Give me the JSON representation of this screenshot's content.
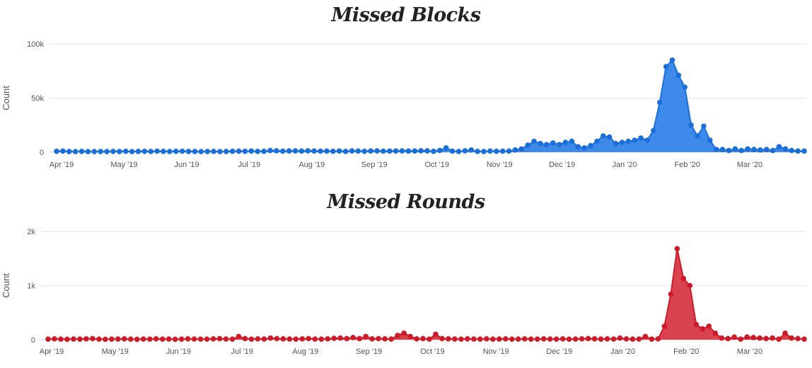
{
  "chart_data": [
    {
      "type": "area",
      "title": "Missed Blocks",
      "ylabel": "Count",
      "ylim": [
        0,
        100000
      ],
      "yticks": [
        {
          "value": 0,
          "label": "0"
        },
        {
          "value": 50000,
          "label": "50k"
        },
        {
          "value": 100000,
          "label": "100k"
        }
      ],
      "xticks": [
        "Apr '19",
        "May '19",
        "Jun '19",
        "Jul '19",
        "Aug '19",
        "Sep '19",
        "Oct '19",
        "Nov '19",
        "Dec '19",
        "Jan '20",
        "Feb '20",
        "Mar '20"
      ],
      "grid": true,
      "series": [
        {
          "color": "#1a6fd9",
          "fill": "#3d8ae8",
          "values": [
            800,
            1000,
            600,
            500,
            700,
            500,
            500,
            600,
            500,
            700,
            600,
            800,
            500,
            700,
            800,
            600,
            900,
            700,
            600,
            800,
            900,
            700,
            600,
            500,
            600,
            700,
            500,
            600,
            800,
            900,
            800,
            1000,
            700,
            800,
            1500,
            1300,
            900,
            1100,
            1200,
            1000,
            1300,
            1100,
            900,
            1000,
            800,
            1100,
            700,
            1200,
            1000,
            800,
            1100,
            1200,
            900,
            1000,
            1100,
            1200,
            1000,
            1100,
            1300,
            1200,
            800,
            1600,
            4000,
            900,
            600,
            1300,
            2000,
            700,
            600,
            1000,
            800,
            900,
            1000,
            2000,
            3000,
            6500,
            10000,
            8000,
            7000,
            8500,
            7000,
            9000,
            10000,
            5000,
            4000,
            6000,
            10000,
            15000,
            14000,
            8000,
            9000,
            10000,
            11000,
            13000,
            11000,
            20000,
            46000,
            79000,
            85000,
            71000,
            60000,
            25000,
            15000,
            24000,
            11000,
            2500,
            2500,
            1500,
            3000,
            1500,
            3000,
            2500,
            2000,
            2500,
            1500,
            5000,
            3000,
            1500,
            1000,
            1000
          ]
        }
      ]
    },
    {
      "type": "area",
      "title": "Missed Rounds",
      "ylabel": "Count",
      "ylim": [
        0,
        2000
      ],
      "yticks": [
        {
          "value": 0,
          "label": "0"
        },
        {
          "value": 1000,
          "label": "1k"
        },
        {
          "value": 2000,
          "label": "2k"
        }
      ],
      "xticks": [
        "Apr '19",
        "May '19",
        "Jun '19",
        "Jul '19",
        "Aug '19",
        "Sep '19",
        "Oct '19",
        "Nov '19",
        "Dec '19",
        "Jan '20",
        "Feb '20",
        "Mar '20"
      ],
      "grid": true,
      "series": [
        {
          "color": "#cc1c2a",
          "fill": "#d9424f",
          "values": [
            10,
            15,
            10,
            8,
            12,
            10,
            15,
            20,
            10,
            8,
            10,
            12,
            15,
            10,
            8,
            12,
            10,
            15,
            10,
            12,
            8,
            10,
            15,
            12,
            10,
            10,
            15,
            20,
            12,
            10,
            60,
            20,
            10,
            15,
            12,
            30,
            20,
            15,
            12,
            10,
            15,
            20,
            12,
            10,
            15,
            25,
            30,
            20,
            40,
            20,
            60,
            15,
            20,
            15,
            12,
            80,
            120,
            60,
            15,
            20,
            10,
            100,
            20,
            15,
            12,
            10,
            15,
            12,
            10,
            15,
            10,
            12,
            15,
            10,
            12,
            15,
            10,
            10,
            15,
            12,
            10,
            15,
            10,
            12,
            15,
            20,
            15,
            10,
            15,
            12,
            30,
            15,
            10,
            12,
            60,
            10,
            15,
            250,
            840,
            1680,
            1130,
            1000,
            280,
            200,
            250,
            120,
            30,
            20,
            50,
            10,
            50,
            40,
            30,
            20,
            30,
            10,
            120,
            30,
            20,
            10
          ]
        }
      ]
    }
  ]
}
